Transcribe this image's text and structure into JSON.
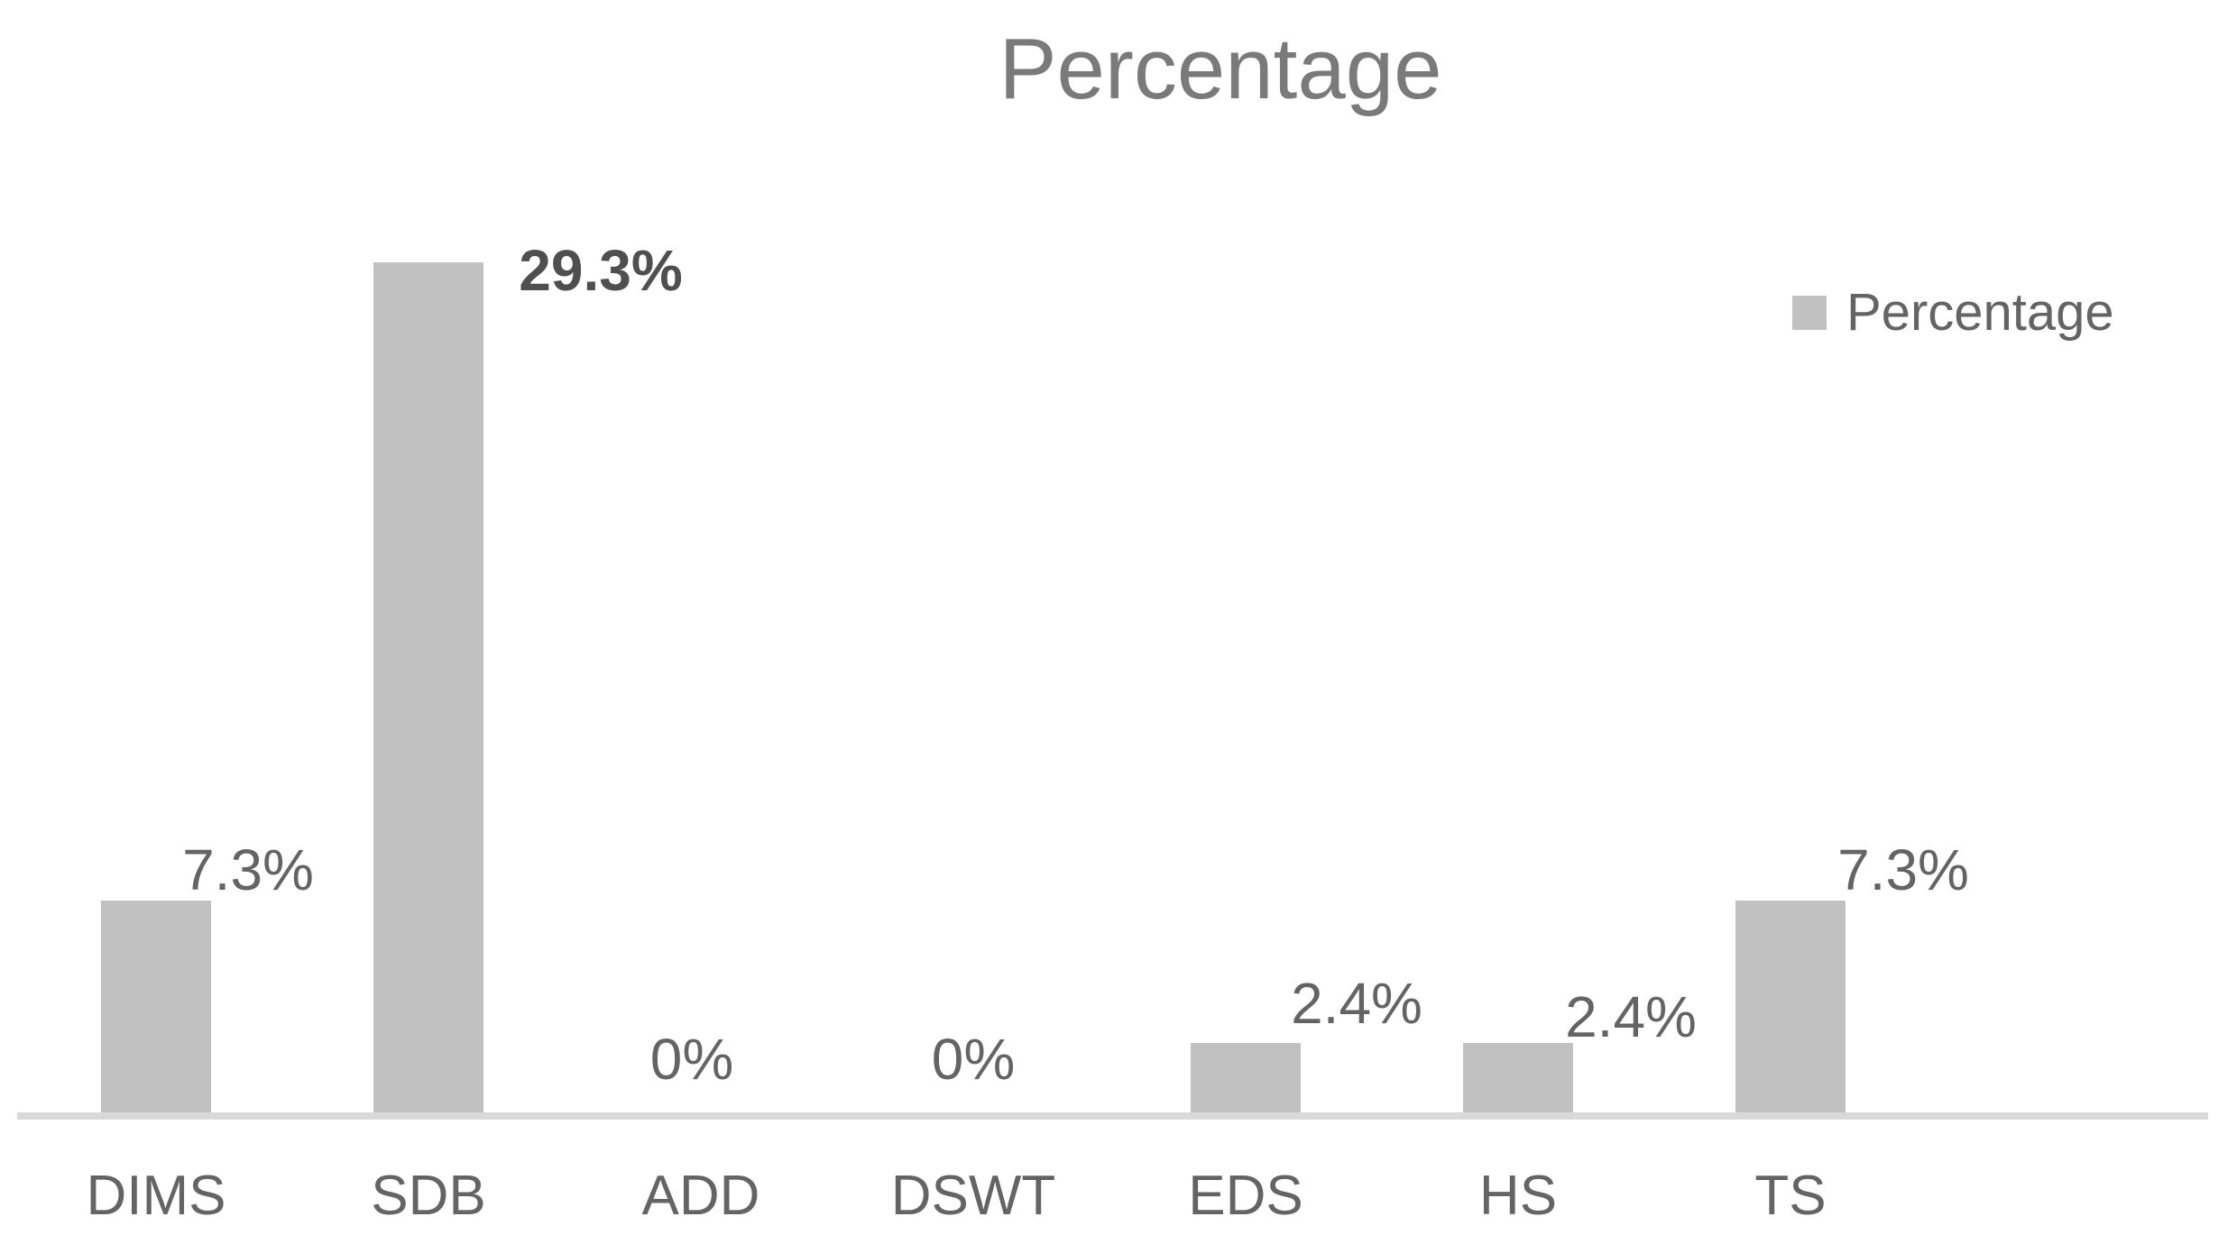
{
  "chart_data": {
    "type": "bar",
    "title": "Percentage",
    "categories": [
      "DIMS",
      "SDB",
      "ADD",
      "DSWT",
      "EDS",
      "HS",
      "TS"
    ],
    "values": [
      7.3,
      29.3,
      0,
      0,
      2.4,
      2.4,
      7.3
    ],
    "value_labels": [
      "7.3%",
      "29.3%",
      "0%",
      "0%",
      "2.4%",
      "2.4%",
      "7.3%"
    ],
    "series": [
      {
        "name": "Percentage",
        "values": [
          7.3,
          29.3,
          0,
          0,
          2.4,
          2.4,
          7.3
        ]
      }
    ],
    "emphasized_label_index": 1,
    "xlabel": "",
    "ylabel": "",
    "ylim": [
      0,
      30
    ],
    "grid": false,
    "y_axis_visible": false,
    "legend": {
      "label": "Percentage",
      "position": "top-right"
    },
    "colors": {
      "bar": "#C1C1C1",
      "axis_line": "#D9D9D9",
      "title_text": "#7A7A7A",
      "label_text": "#646464",
      "emphasized_label_text": "#4F4F4F",
      "background": "#FFFFFF"
    }
  }
}
